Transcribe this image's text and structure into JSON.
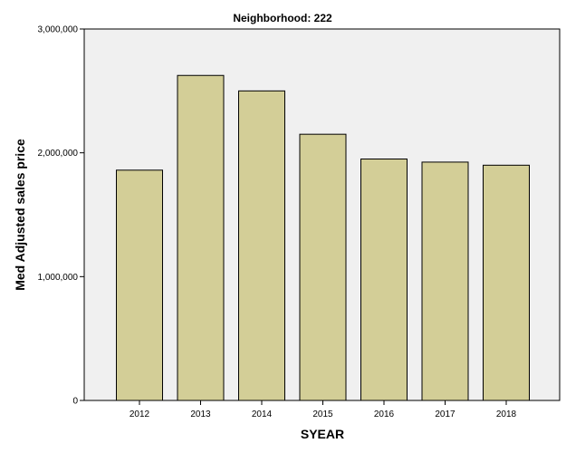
{
  "chart_data": {
    "type": "bar",
    "title": "Neighborhood: 222",
    "xlabel": "SYEAR",
    "ylabel": "Med Adjusted sales price",
    "categories": [
      "2012",
      "2013",
      "2014",
      "2015",
      "2016",
      "2017",
      "2018"
    ],
    "values": [
      1860000,
      2625000,
      2500000,
      2150000,
      1950000,
      1925000,
      1900000
    ],
    "ylim": [
      0,
      3000000
    ],
    "yticks": [
      0,
      1000000,
      2000000,
      3000000
    ],
    "ytick_labels": [
      "0",
      "1,000,000",
      "2,000,000",
      "3,000,000"
    ],
    "grid": false,
    "legend": "none",
    "colors": {
      "bar_fill": "#d3ce97",
      "bar_stroke": "#000000",
      "plot_background": "#f0f0f0"
    }
  }
}
